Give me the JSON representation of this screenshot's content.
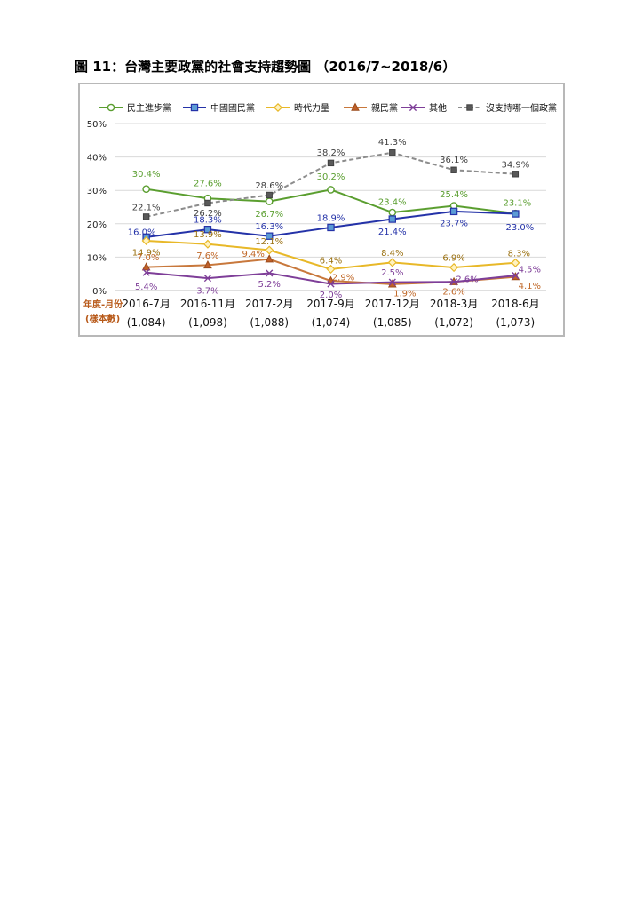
{
  "page": {
    "title": "圖 11：台灣主要政黨的社會支持趨勢圖 （2016/7~2018/6）"
  },
  "chart_data": {
    "type": "line",
    "title": "",
    "xlabel": "年度-月份\n(樣本數)",
    "xlabel_lines": [
      "年度-月份",
      "(樣本數)"
    ],
    "ylabel": "",
    "ylim": [
      0,
      50
    ],
    "yticks": [
      "0%",
      "10%",
      "20%",
      "30%",
      "40%",
      "50%"
    ],
    "grid": true,
    "legend": "top",
    "categories": [
      "2016-7月",
      "2016-11月",
      "2017-2月",
      "2017-9月",
      "2017-12月",
      "2018-3月",
      "2018-6月"
    ],
    "sample_sizes": [
      "(1,084)",
      "(1,098)",
      "(1,088)",
      "(1,074)",
      "(1,085)",
      "(1,072)",
      "(1,073)"
    ],
    "series": [
      {
        "name": "民主進步黨",
        "color": "#5a9e2f",
        "marker": "circle",
        "dash": false,
        "values": [
          30.4,
          27.6,
          26.7,
          30.2,
          23.4,
          25.4,
          23.1
        ],
        "labels": [
          "30.4%",
          "27.6%",
          "26.7%",
          "30.2%",
          "23.4%",
          "25.4%",
          "23.1%"
        ]
      },
      {
        "name": "中國國民黨",
        "color": "#2432a8",
        "marker": "square",
        "dash": false,
        "values": [
          16.0,
          18.3,
          16.3,
          18.9,
          21.4,
          23.7,
          23.0
        ],
        "labels": [
          "16.0%",
          "18.3%",
          "16.3%",
          "18.9%",
          "21.4%",
          "23.7%",
          "23.0%"
        ]
      },
      {
        "name": "時代力量",
        "color": "#e8b828",
        "marker": "diamond",
        "dash": false,
        "values": [
          14.9,
          13.9,
          12.1,
          6.4,
          8.4,
          6.9,
          8.3
        ],
        "labels": [
          "14.9%",
          "13.9%",
          "12.1%",
          "6.4%",
          "8.4%",
          "6.9%",
          "8.3%"
        ]
      },
      {
        "name": "親民黨",
        "color": "#c8783c",
        "marker": "triangle",
        "dash": false,
        "values": [
          7.0,
          7.6,
          9.4,
          2.9,
          1.9,
          2.6,
          4.1
        ],
        "labels": [
          "7.0%",
          "7.6%",
          "9.4%",
          "2.9%",
          "1.9%",
          "2.6%",
          "4.1%"
        ]
      },
      {
        "name": "其他",
        "color": "#7e3e98",
        "marker": "x",
        "dash": false,
        "values": [
          5.4,
          3.7,
          5.2,
          2.0,
          2.5,
          2.6,
          4.5
        ],
        "labels": [
          "5.4%",
          "3.7%",
          "5.2%",
          "2.0%",
          "2.5%",
          "2.6%",
          "4.5%"
        ]
      },
      {
        "name": "沒支持哪一個政黨",
        "color": "#8c8c8c",
        "marker": "square-dark",
        "dash": true,
        "values": [
          22.1,
          26.2,
          28.6,
          38.2,
          41.3,
          36.1,
          34.9
        ],
        "labels": [
          "22.1%",
          "26.2%",
          "28.6%",
          "38.2%",
          "41.3%",
          "36.1%",
          "34.9%"
        ]
      }
    ],
    "label_colors": {
      "民主進步黨": "#5a9e2f",
      "中國國民黨": "#2432a8",
      "時代力量": "#9a7010",
      "親民黨": "#c06828",
      "其他": "#7e3e98",
      "沒支持哪一個政黨": "#404040"
    }
  }
}
